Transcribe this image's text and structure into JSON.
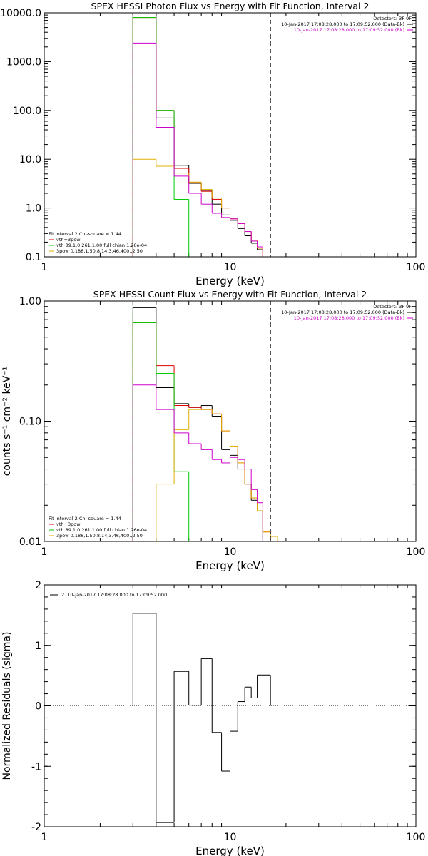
{
  "chart_data": [
    {
      "type": "line",
      "title": "SPEX HESSI Photon Flux vs Energy with Fit Function, Interval 2",
      "xlabel": "Energy (keV)",
      "ylabel": "",
      "xscale": "log",
      "yscale": "log",
      "xlim": [
        1,
        100
      ],
      "ylim": [
        0.1,
        10000
      ],
      "xticks": [
        {
          "v": 1,
          "label": "1"
        },
        {
          "v": 10,
          "label": "10"
        },
        {
          "v": 100,
          "label": "100"
        }
      ],
      "yticks": [
        {
          "v": 0.1,
          "label": "0.1"
        },
        {
          "v": 1,
          "label": "1.0"
        },
        {
          "v": 10,
          "label": "10.0"
        },
        {
          "v": 100,
          "label": "100.0"
        },
        {
          "v": 1000,
          "label": "1000.0"
        },
        {
          "v": 10000,
          "label": "10000.0"
        }
      ],
      "fit_range": [
        3,
        16.5
      ],
      "header": [
        {
          "text": "Detectors: 3F 9F",
          "color": "#000000"
        },
        {
          "text": "10-Jan-2017 17:08:28.000 to 17:09:52.000 (Data-Bk)",
          "color": "#000000"
        },
        {
          "text": "10-Jan-2017 17:08:28.000 to 17:09:52.000 (Bk)",
          "color": "#cc00cc"
        }
      ],
      "legend": [
        {
          "text": "Fit Interval 2   Chi-square = 1.44",
          "color": "#000000"
        },
        {
          "text": "vth+3pow",
          "color": "#e00000"
        },
        {
          "text": "vth 89.1,0.261,1.00  full chian 1.26e-04",
          "color": "#00cc00"
        },
        {
          "text": "3pow 0.188,1.50,8.14,3.46,400.,2.50",
          "color": "#e0b000"
        }
      ],
      "edges": [
        3,
        4,
        5,
        6,
        7,
        8,
        9,
        10,
        11,
        12,
        13,
        14,
        15,
        16.5,
        18
      ],
      "series": [
        {
          "name": "Data-Bk",
          "color": "#000000",
          "values": [
            10000,
            70,
            7.5,
            3.2,
            2.3,
            1.2,
            0.72,
            0.56,
            0.38,
            0.27,
            0.19,
            0.14,
            0.095,
            null
          ]
        },
        {
          "name": "vth+3pow",
          "color": "#e00000",
          "values": [
            8000,
            100,
            6.5,
            3.3,
            2.2,
            1.5,
            1.0,
            0.6,
            0.48,
            0.33,
            0.22,
            0.15,
            0.1,
            null
          ]
        },
        {
          "name": "vth",
          "color": "#00cc00",
          "values": [
            8000,
            100,
            1.5,
            0.001,
            null,
            null,
            null,
            null,
            null,
            null,
            null,
            null,
            null,
            null
          ]
        },
        {
          "name": "3pow",
          "color": "#e0b000",
          "values": [
            10,
            7.2,
            5.2,
            3.4,
            2.4,
            1.6,
            1.0,
            0.62,
            0.48,
            0.33,
            0.22,
            0.15,
            0.1,
            0.1
          ]
        },
        {
          "name": "Bk",
          "color": "#cc00cc",
          "values": [
            2400,
            45,
            4.5,
            2.0,
            1.2,
            0.78,
            0.64,
            0.6,
            0.48,
            0.33,
            0.21,
            0.16,
            null,
            null
          ]
        }
      ]
    },
    {
      "type": "line",
      "title": "SPEX HESSI Count Flux vs Energy with Fit Function, Interval 2",
      "xlabel": "Energy (keV)",
      "ylabel": "counts s⁻¹ cm⁻² keV⁻¹",
      "xscale": "log",
      "yscale": "log",
      "xlim": [
        1,
        100
      ],
      "ylim": [
        0.01,
        1.0
      ],
      "xticks": [
        {
          "v": 1,
          "label": "1"
        },
        {
          "v": 10,
          "label": "10"
        },
        {
          "v": 100,
          "label": "100"
        }
      ],
      "yticks": [
        {
          "v": 0.01,
          "label": "0.01"
        },
        {
          "v": 0.1,
          "label": "0.10"
        },
        {
          "v": 1,
          "label": "1.00"
        }
      ],
      "fit_range": [
        3,
        16.5
      ],
      "header": [
        {
          "text": "Detectors: 3F 9F",
          "color": "#000000"
        },
        {
          "text": "10-Jan-2017 17:08:28.000 to 17:09:52.000 (Data-Bk)",
          "color": "#000000"
        },
        {
          "text": "10-Jan-2017 17:08:28.000 to 17:09:52.000 (Bk)",
          "color": "#cc00cc"
        }
      ],
      "legend": [
        {
          "text": "Fit Interval 2   Chi-square = 1.44",
          "color": "#000000"
        },
        {
          "text": "vth+3pow",
          "color": "#e00000"
        },
        {
          "text": "vth 89.1,0.261,1.00  full chian 1.26e-04",
          "color": "#00cc00"
        },
        {
          "text": "3pow 0.188,1.50,8.14,3.46,400.,2.50",
          "color": "#e0b000"
        }
      ],
      "edges": [
        3,
        4,
        5,
        6,
        7,
        8,
        9,
        10,
        11,
        12,
        13,
        14,
        15,
        16.5,
        18
      ],
      "series": [
        {
          "name": "Data-Bk",
          "color": "#000000",
          "values": [
            0.88,
            0.19,
            0.14,
            0.13,
            0.135,
            0.11,
            0.058,
            0.052,
            0.04,
            0.03,
            0.022,
            0.018,
            0.0095,
            null
          ]
        },
        {
          "name": "vth+3pow",
          "color": "#e00000",
          "values": [
            0.66,
            0.29,
            0.135,
            0.13,
            0.125,
            0.115,
            0.083,
            0.062,
            0.045,
            0.03,
            0.023,
            0.018,
            0.012,
            null
          ]
        },
        {
          "name": "vth",
          "color": "#00cc00",
          "values": [
            0.66,
            0.25,
            0.038,
            0.001,
            null,
            null,
            null,
            null,
            null,
            null,
            null,
            null,
            null,
            null
          ]
        },
        {
          "name": "3pow",
          "color": "#e0b000",
          "values": [
            0.001,
            0.03,
            0.085,
            0.125,
            0.125,
            0.115,
            0.083,
            0.062,
            0.045,
            0.03,
            0.023,
            0.018,
            0.012,
            0.011
          ]
        },
        {
          "name": "Bk",
          "color": "#cc00cc",
          "values": [
            0.2,
            0.125,
            0.08,
            0.065,
            0.058,
            0.048,
            0.045,
            0.05,
            0.048,
            0.04,
            0.027,
            0.021,
            null,
            null
          ]
        }
      ]
    },
    {
      "type": "line",
      "title": "",
      "xlabel": "Energy (keV)",
      "ylabel": "Normalized Residuals (sigma)",
      "xscale": "log",
      "yscale": "linear",
      "xlim": [
        1,
        100
      ],
      "ylim": [
        -2,
        2
      ],
      "xticks": [
        {
          "v": 1,
          "label": "1"
        },
        {
          "v": 10,
          "label": "10"
        },
        {
          "v": 100,
          "label": "100"
        }
      ],
      "yticks": [
        {
          "v": -2,
          "label": "-2"
        },
        {
          "v": -1,
          "label": "-1"
        },
        {
          "v": 0,
          "label": "0"
        },
        {
          "v": 1,
          "label": "1"
        },
        {
          "v": 2,
          "label": "2"
        }
      ],
      "legend": [
        {
          "text": "2. 10-Jan-2017 17:08:28.000 to 17:09:52.000",
          "color": "#000000"
        }
      ],
      "edges": [
        3,
        4,
        5,
        6,
        7,
        8,
        9,
        10,
        11,
        12,
        13,
        14,
        15,
        16.5
      ],
      "series": [
        {
          "name": "2. 10-Jan-2017 17:08:28.000 to 17:09:52.000",
          "color": "#000000",
          "values": [
            1.53,
            -1.93,
            0.57,
            0.01,
            0.78,
            -0.44,
            -1.08,
            -0.42,
            0.07,
            0.31,
            0.13,
            0.51,
            0.51
          ]
        }
      ]
    }
  ]
}
